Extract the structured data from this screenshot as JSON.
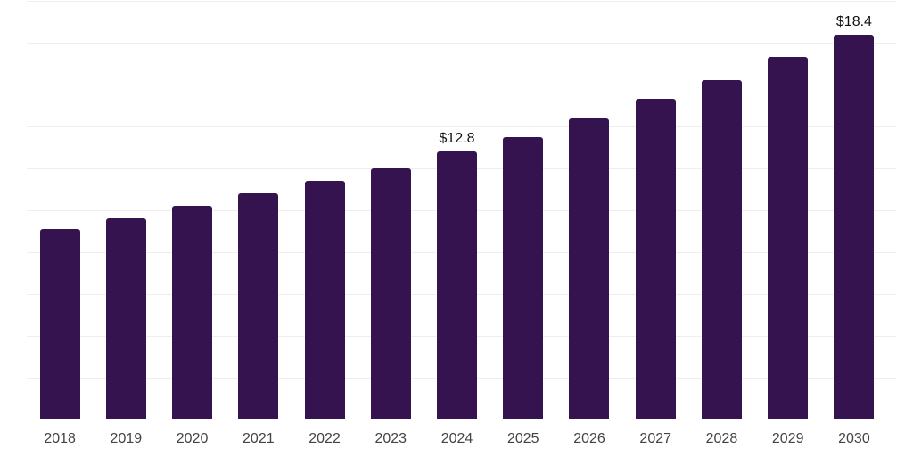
{
  "chart": {
    "background_color": "#ffffff",
    "bar_color": "#34134E",
    "gridline_color": "#efedf1",
    "axis_line_color": "#2b2b2b",
    "tick_label_color": "#444444",
    "data_label_color": "#111111"
  },
  "chart_data": {
    "type": "bar",
    "title": "",
    "xlabel": "",
    "ylabel": "",
    "categories": [
      "2018",
      "2019",
      "2020",
      "2021",
      "2022",
      "2023",
      "2024",
      "2025",
      "2026",
      "2027",
      "2028",
      "2029",
      "2030"
    ],
    "values": [
      9.1,
      9.6,
      10.2,
      10.8,
      11.4,
      12.0,
      12.8,
      13.5,
      14.4,
      15.3,
      16.2,
      17.3,
      18.4
    ],
    "data_labels": [
      "",
      "",
      "",
      "",
      "",
      "",
      "$12.8",
      "",
      "",
      "",
      "",
      "",
      "$18.4"
    ],
    "value_unit_prefix": "$",
    "ylim": [
      0,
      20
    ],
    "gridline_step": 2,
    "grid": "horizontal-only",
    "y_axis_tick_labels_visible": false,
    "legend_position": "none"
  }
}
